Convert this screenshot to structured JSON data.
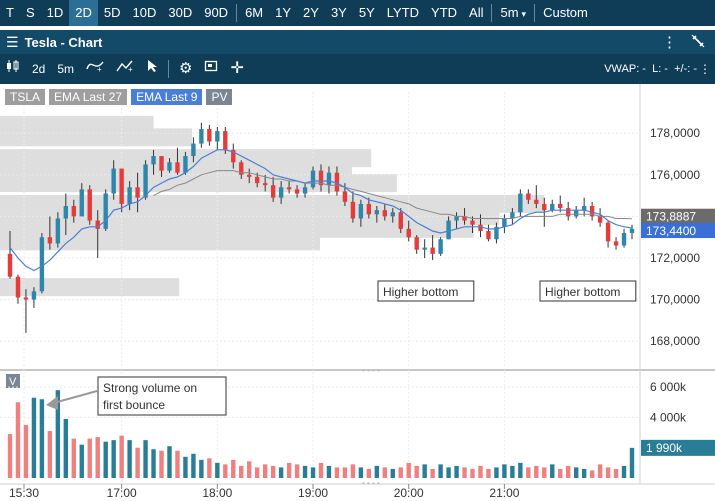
{
  "rangebar": {
    "ranges": [
      "T",
      "S",
      "1D",
      "2D",
      "5D",
      "10D",
      "30D",
      "90D",
      "6M",
      "1Y",
      "2Y",
      "3Y",
      "5Y",
      "LYTD",
      "YTD",
      "All"
    ],
    "active": "2D",
    "interval": "5m",
    "custom": "Custom"
  },
  "title": "Tesla - Chart",
  "toolbar": {
    "tf1": "2d",
    "tf2": "5m",
    "vwap_readout": "VWAP: -  L: -  +/-: -"
  },
  "legend": [
    {
      "label": "TSLA",
      "color": "#9e9e9e"
    },
    {
      "label": "EMA Last 27",
      "color": "#9e9e9e"
    },
    {
      "label": "EMA Last 9",
      "color": "#4a7fd8"
    },
    {
      "label": "PV",
      "color": "#7a8793"
    }
  ],
  "price_axis": {
    "ticks": [
      "178,0000",
      "176,0000",
      "174,0000",
      "172,0000",
      "170,0000",
      "168,0000"
    ]
  },
  "price_tags": [
    {
      "value": "173,8887",
      "color": "#6b6b6b"
    },
    {
      "value": "173,4400",
      "color": "#3a6fd8"
    }
  ],
  "volume_axis": {
    "ticks": [
      "6 000k",
      "4 000k"
    ],
    "current": "1 990k",
    "label": "V"
  },
  "time_axis": {
    "labels": [
      "15:30",
      "17:00",
      "18:00",
      "19:00",
      "20:00",
      "21:00"
    ]
  },
  "annotations": {
    "higher_bottom_1": "Higher bottom",
    "higher_bottom_2": "Higher bottom",
    "strong_volume": "Strong volume on first bounce"
  },
  "colors": {
    "up": "#2e86ab",
    "down": "#e63b3b",
    "ema9": "#4a7fd8",
    "ema27": "#888888",
    "vol_up": "#2a7d96",
    "vol_down": "#f08080",
    "header": "#0f3d57"
  },
  "chart_data": {
    "type": "candlestick",
    "price_range": [
      167,
      179.5
    ],
    "volume_range": [
      0,
      7000
    ],
    "time_labels": [
      "15:30",
      "17:00",
      "18:00",
      "19:00",
      "20:00",
      "21:00"
    ],
    "candles": [
      [
        172.2,
        173.3,
        171.0,
        171.1
      ],
      [
        171.1,
        171.2,
        169.8,
        170.1
      ],
      [
        170.1,
        170.5,
        168.4,
        170.0
      ],
      [
        170.0,
        170.6,
        169.6,
        170.4
      ],
      [
        170.4,
        173.2,
        170.3,
        173.0
      ],
      [
        173.0,
        174.0,
        172.4,
        172.7
      ],
      [
        172.7,
        174.2,
        172.5,
        173.9
      ],
      [
        173.9,
        175.1,
        173.1,
        174.5
      ],
      [
        174.5,
        174.8,
        173.7,
        174.0
      ],
      [
        174.0,
        175.6,
        174.0,
        175.3
      ],
      [
        175.3,
        175.5,
        173.6,
        173.8
      ],
      [
        173.8,
        174.3,
        172.0,
        173.4
      ],
      [
        173.4,
        175.3,
        173.3,
        175.1
      ],
      [
        175.1,
        176.7,
        174.8,
        176.3
      ],
      [
        176.3,
        176.3,
        174.2,
        174.6
      ],
      [
        174.6,
        175.7,
        174.3,
        175.4
      ],
      [
        175.4,
        176.1,
        174.2,
        174.9
      ],
      [
        174.9,
        176.7,
        174.8,
        176.5
      ],
      [
        176.5,
        177.2,
        176.0,
        176.9
      ],
      [
        176.9,
        176.9,
        175.9,
        176.2
      ],
      [
        176.2,
        176.8,
        176.1,
        176.6
      ],
      [
        176.6,
        177.3,
        176.0,
        176.1
      ],
      [
        176.1,
        177.1,
        176.0,
        176.9
      ],
      [
        176.9,
        177.8,
        176.6,
        177.5
      ],
      [
        177.5,
        178.5,
        177.3,
        178.2
      ],
      [
        178.2,
        178.4,
        177.4,
        177.6
      ],
      [
        177.6,
        178.3,
        177.2,
        178.1
      ],
      [
        178.1,
        178.3,
        177.0,
        177.2
      ],
      [
        177.2,
        177.5,
        176.3,
        176.6
      ],
      [
        176.6,
        176.7,
        175.8,
        176.0
      ],
      [
        176.0,
        176.3,
        175.6,
        175.9
      ],
      [
        175.9,
        176.1,
        175.4,
        175.6
      ],
      [
        175.6,
        176.0,
        175.2,
        175.5
      ],
      [
        175.5,
        175.9,
        174.7,
        174.9
      ],
      [
        174.9,
        175.7,
        174.6,
        175.4
      ],
      [
        175.4,
        175.7,
        175.1,
        175.3
      ],
      [
        175.3,
        175.5,
        174.9,
        175.1
      ],
      [
        175.1,
        175.6,
        174.9,
        175.4
      ],
      [
        175.4,
        176.4,
        175.3,
        176.2
      ],
      [
        176.2,
        176.5,
        175.2,
        175.5
      ],
      [
        175.5,
        176.4,
        175.1,
        176.1
      ],
      [
        176.1,
        176.4,
        175.0,
        175.2
      ],
      [
        175.2,
        175.6,
        174.5,
        174.7
      ],
      [
        174.7,
        175.2,
        173.7,
        173.9
      ],
      [
        173.9,
        174.8,
        173.5,
        174.6
      ],
      [
        174.6,
        174.9,
        173.9,
        174.1
      ],
      [
        174.1,
        174.5,
        173.7,
        174.3
      ],
      [
        174.3,
        174.6,
        173.8,
        174.0
      ],
      [
        174.0,
        174.4,
        173.7,
        174.2
      ],
      [
        174.2,
        174.4,
        173.2,
        173.4
      ],
      [
        173.4,
        173.8,
        172.8,
        173.0
      ],
      [
        173.0,
        173.1,
        172.2,
        172.4
      ],
      [
        172.4,
        172.9,
        172.0,
        172.5
      ],
      [
        172.5,
        173.1,
        171.9,
        172.2
      ],
      [
        172.2,
        173.0,
        172.1,
        172.9
      ],
      [
        172.9,
        174.0,
        172.9,
        173.8
      ],
      [
        173.8,
        174.2,
        173.4,
        174.0
      ],
      [
        174.0,
        174.4,
        173.6,
        173.8
      ],
      [
        173.8,
        174.0,
        173.2,
        173.6
      ],
      [
        173.6,
        174.1,
        173.0,
        173.3
      ],
      [
        173.3,
        173.6,
        172.8,
        172.9
      ],
      [
        172.9,
        173.7,
        172.7,
        173.5
      ],
      [
        173.5,
        174.1,
        173.2,
        173.9
      ],
      [
        173.9,
        174.4,
        173.6,
        174.2
      ],
      [
        174.2,
        175.3,
        174.0,
        175.1
      ],
      [
        175.1,
        175.3,
        174.6,
        174.8
      ],
      [
        174.8,
        175.5,
        174.4,
        174.6
      ],
      [
        174.6,
        174.9,
        173.5,
        174.3
      ],
      [
        174.3,
        174.8,
        174.2,
        174.6
      ],
      [
        174.6,
        175.0,
        174.2,
        174.4
      ],
      [
        174.4,
        174.7,
        173.8,
        174.0
      ],
      [
        174.0,
        174.5,
        173.9,
        174.3
      ],
      [
        174.3,
        174.9,
        174.0,
        174.5
      ],
      [
        174.5,
        174.7,
        173.8,
        174.0
      ],
      [
        174.0,
        174.4,
        173.5,
        173.7
      ],
      [
        173.7,
        173.8,
        172.5,
        172.8
      ],
      [
        172.8,
        173.0,
        172.4,
        172.6
      ],
      [
        172.6,
        173.4,
        172.5,
        173.2
      ],
      [
        173.2,
        173.6,
        172.9,
        173.4
      ]
    ],
    "ema9": [
      172.5,
      172.0,
      171.6,
      171.4,
      171.6,
      171.9,
      172.3,
      172.7,
      173.0,
      173.4,
      173.5,
      173.5,
      173.8,
      174.3,
      174.4,
      174.6,
      174.7,
      175.0,
      175.4,
      175.6,
      175.8,
      175.9,
      176.1,
      176.4,
      176.8,
      177.0,
      177.2,
      177.2,
      177.1,
      176.9,
      176.7,
      176.5,
      176.3,
      176.0,
      175.9,
      175.8,
      175.7,
      175.6,
      175.7,
      175.7,
      175.7,
      175.6,
      175.4,
      175.1,
      175.0,
      174.8,
      174.7,
      174.6,
      174.5,
      174.3,
      174.0,
      173.7,
      173.5,
      173.3,
      173.2,
      173.3,
      173.4,
      173.5,
      173.5,
      173.5,
      173.4,
      173.4,
      173.5,
      173.6,
      173.9,
      174.1,
      174.2,
      174.2,
      174.3,
      174.3,
      174.3,
      174.3,
      174.3,
      174.2,
      174.1,
      173.8,
      173.6,
      173.5,
      173.44
    ],
    "ema27": [
      null,
      null,
      null,
      null,
      null,
      null,
      null,
      null,
      null,
      null,
      null,
      null,
      null,
      null,
      null,
      null,
      null,
      null,
      175.0,
      175.2,
      175.3,
      175.5,
      175.6,
      175.8,
      176.0,
      176.1,
      176.2,
      176.2,
      176.2,
      176.1,
      176.1,
      176.0,
      175.9,
      175.8,
      175.8,
      175.7,
      175.7,
      175.6,
      175.6,
      175.6,
      175.5,
      175.5,
      175.4,
      175.3,
      175.2,
      175.1,
      175.0,
      174.9,
      174.8,
      174.7,
      174.6,
      174.4,
      174.3,
      174.2,
      174.1,
      174.1,
      174.0,
      174.0,
      173.9,
      173.9,
      173.9,
      173.9,
      173.9,
      173.9,
      174.0,
      174.0,
      174.0,
      174.0,
      174.0,
      174.1,
      174.1,
      174.1,
      174.1,
      174.1,
      174.0,
      174.0,
      173.9,
      173.9,
      173.89
    ],
    "volume": [
      2900,
      5000,
      3500,
      5300,
      5200,
      3100,
      5800,
      3900,
      2600,
      2200,
      2600,
      2700,
      2400,
      2500,
      2800,
      2500,
      2000,
      2500,
      1900,
      1800,
      2100,
      1800,
      1400,
      1600,
      1200,
      1300,
      1000,
      900,
      1200,
      800,
      1100,
      700,
      900,
      800,
      700,
      1000,
      900,
      800,
      700,
      1000,
      800,
      700,
      700,
      900,
      700,
      600,
      800,
      700,
      600,
      700,
      1000,
      800,
      900,
      600,
      900,
      700,
      800,
      700,
      600,
      800,
      600,
      700,
      900,
      800,
      1000,
      700,
      800,
      700,
      900,
      600,
      800,
      700,
      600,
      500,
      900,
      700,
      600,
      800,
      1990
    ],
    "volume_profile": [
      {
        "price": 178.4,
        "volume": 0.24
      },
      {
        "price": 177.8,
        "volume": 0.3
      },
      {
        "price": 176.8,
        "volume": 0.58
      },
      {
        "price": 176.2,
        "volume": 0.55
      },
      {
        "price": 175.6,
        "volume": 0.62
      },
      {
        "price": 174.6,
        "volume": 0.85
      },
      {
        "price": 174.0,
        "volume": 0.78
      },
      {
        "price": 173.4,
        "volume": 0.74
      },
      {
        "price": 172.8,
        "volume": 0.5
      },
      {
        "price": 170.6,
        "volume": 0.28
      }
    ]
  }
}
